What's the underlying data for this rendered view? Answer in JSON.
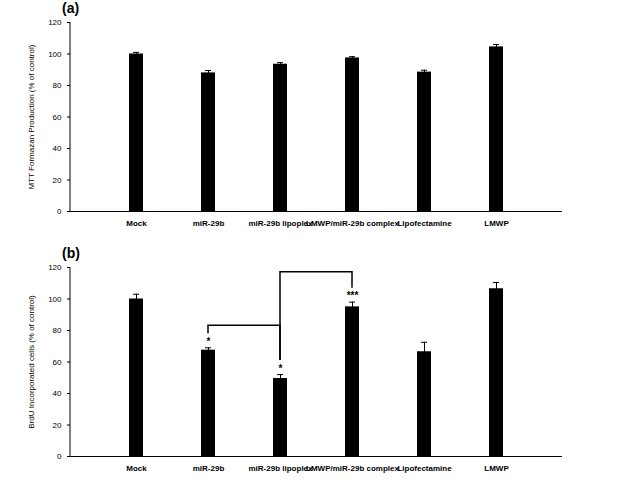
{
  "chart_data": [
    {
      "type": "bar",
      "title": "(a)",
      "y_label": "MTT Formazan Production (% of control)",
      "categories": [
        "Mock",
        "miR-29b",
        "miR-29b lipoplex",
        "LMWP/miR-29b complex",
        "Lipofectamine",
        "LMWP"
      ],
      "values": [
        100,
        88,
        93.5,
        97.5,
        88.5,
        104.5
      ],
      "errors": [
        1,
        1.5,
        1,
        0.8,
        1.2,
        1.5
      ],
      "color": "#000000",
      "ylim": [
        0,
        120
      ],
      "yticks": [
        0,
        20,
        40,
        60,
        80,
        100,
        120
      ]
    },
    {
      "type": "bar",
      "title": "(b)",
      "y_label": "BrdU Incorporated cells (% of control)",
      "categories": [
        "Mock",
        "miR-29b",
        "miR-29b lipoplex",
        "LMWP/miR-29b complex",
        "Lipofectamine",
        "LMWP"
      ],
      "values": [
        100,
        67.5,
        49.5,
        95,
        66.5,
        106.5
      ],
      "errors": [
        3,
        1.5,
        2.5,
        3,
        6,
        4
      ],
      "color": "#000000",
      "ylim": [
        0,
        120
      ],
      "yticks": [
        0,
        20,
        40,
        60,
        80,
        100,
        120
      ],
      "annotations": [
        {
          "category": "miR-29b",
          "text": "*"
        },
        {
          "category": "miR-29b lipoplex",
          "text": "*"
        },
        {
          "category": "LMWP/miR-29b complex",
          "text": "***"
        }
      ],
      "brackets": [
        [
          "miR-29b",
          "miR-29b lipoplex"
        ],
        [
          "miR-29b lipoplex",
          "LMWP/miR-29b complex"
        ]
      ]
    }
  ]
}
